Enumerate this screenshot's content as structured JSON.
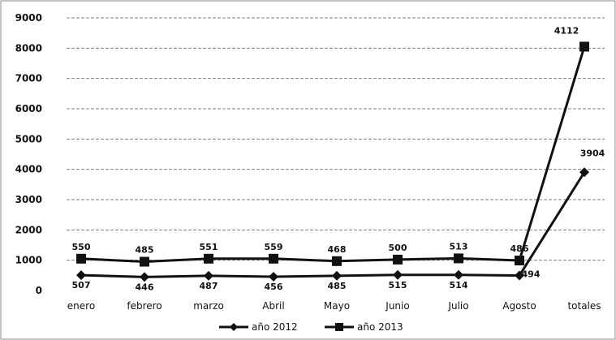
{
  "chart_data": {
    "type": "line",
    "title": "",
    "xlabel": "",
    "ylabel": "",
    "categories": [
      "enero",
      "febrero",
      "marzo",
      "Abril",
      "Mayo",
      "Junio",
      "Julio",
      "Agosto",
      "totales"
    ],
    "ylim": [
      0,
      9000
    ],
    "yticks": [
      "0",
      "1000",
      "2000",
      "3000",
      "4000",
      "5000",
      "6000",
      "7000",
      "8000",
      "9000"
    ],
    "grid": true,
    "legend_position": "bottom",
    "series": [
      {
        "name": "año 2012",
        "marker": "diamond",
        "values": [
          507,
          446,
          487,
          456,
          485,
          515,
          514,
          494,
          3904
        ],
        "labels": [
          "507",
          "446",
          "487",
          "456",
          "485",
          "515",
          "514",
          "494",
          "3904"
        ]
      },
      {
        "name": "año 2013",
        "marker": "square",
        "values": [
          1050,
          950,
          1050,
          1050,
          970,
          1020,
          1060,
          990,
          8050
        ],
        "labels": [
          "550",
          "485",
          "551",
          "559",
          "468",
          "500",
          "513",
          "486",
          "4112"
        ]
      }
    ],
    "colors": {
      "series": "#111111",
      "grid": "#555555"
    }
  }
}
